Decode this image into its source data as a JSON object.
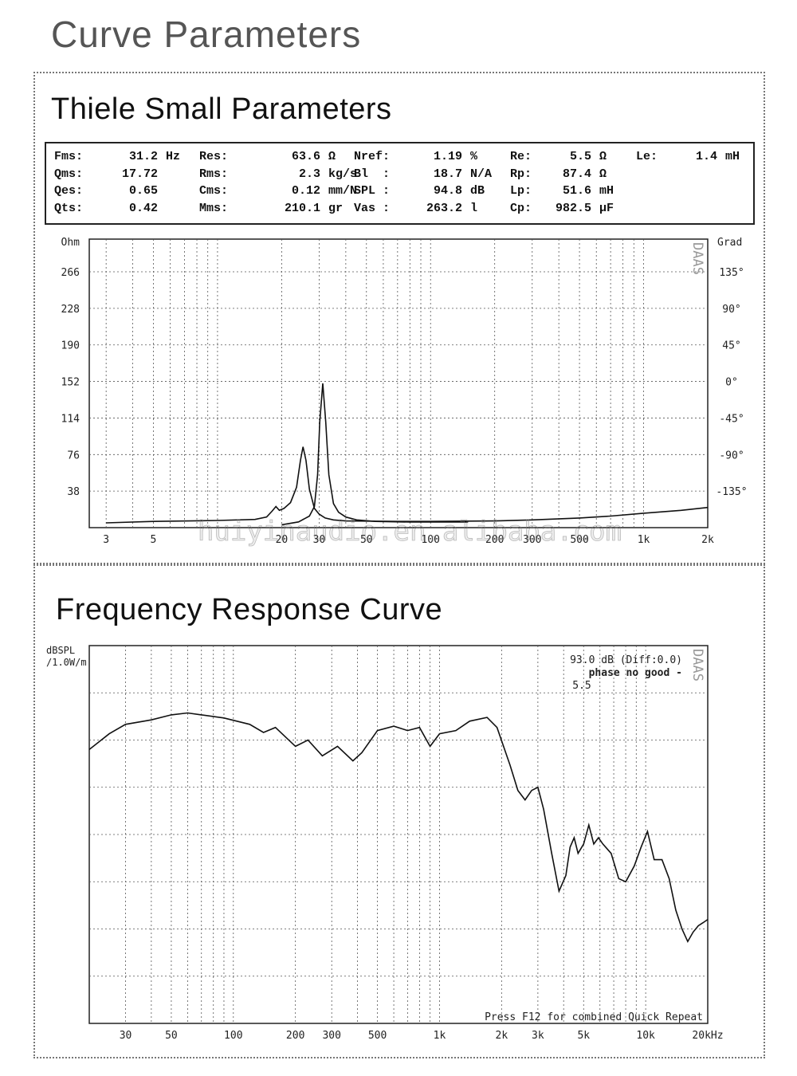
{
  "page_title": "Curve Parameters",
  "ts_section": {
    "title": "Thiele Small Parameters",
    "params": [
      [
        {
          "k": "Fms:",
          "v": "31.2",
          "u": "Hz"
        },
        {
          "k": "Qms:",
          "v": "17.72",
          "u": ""
        },
        {
          "k": "Qes:",
          "v": "0.65",
          "u": ""
        },
        {
          "k": "Qts:",
          "v": "0.42",
          "u": ""
        }
      ],
      [
        {
          "k": "Res:",
          "v": "63.6",
          "u": "Ω"
        },
        {
          "k": "Rms:",
          "v": "2.3",
          "u": "kg/s"
        },
        {
          "k": "Cms:",
          "v": "0.12",
          "u": "mm/N"
        },
        {
          "k": "Mms:",
          "v": "210.1",
          "u": "gr"
        }
      ],
      [
        {
          "k": "Nref:",
          "v": "1.19",
          "u": "%"
        },
        {
          "k": "Bl  :",
          "v": "18.7",
          "u": "N/A"
        },
        {
          "k": "SPL :",
          "v": "94.8",
          "u": "dB"
        },
        {
          "k": "Vas :",
          "v": "263.2",
          "u": "l"
        }
      ],
      [
        {
          "k": "Re:",
          "v": "5.5",
          "u": "Ω"
        },
        {
          "k": "Rp:",
          "v": "87.4",
          "u": "Ω"
        },
        {
          "k": "Lp:",
          "v": "51.6",
          "u": "mH"
        },
        {
          "k": "Cp:",
          "v": "982.5",
          "u": "μF"
        }
      ],
      [
        {
          "k": "Le:",
          "v": "1.4",
          "u": "mH"
        }
      ]
    ]
  },
  "fr_section": {
    "title": "Frequency Response Curve"
  },
  "watermark": "huiyinaudio.en.alibaba.com",
  "brand": "DAAS",
  "chart_data": [
    {
      "type": "line",
      "title": "",
      "ylabel": "Ohm",
      "y2label": "Grad",
      "xlabel": "",
      "xscale": "log",
      "xlim": [
        2.5,
        2000
      ],
      "ylim": [
        0,
        300
      ],
      "x_ticks": [
        3,
        5,
        20,
        30,
        50,
        100,
        200,
        300,
        500,
        1000,
        2000
      ],
      "x_tick_labels": [
        "3",
        "5",
        "20",
        "30",
        "50",
        "100",
        "200",
        "300",
        "500",
        "1k",
        "2k"
      ],
      "y_ticks": [
        38,
        76,
        114,
        152,
        190,
        228,
        266
      ],
      "y2_ticks": [
        -135,
        -90,
        -45,
        0,
        45,
        90,
        135
      ],
      "y2_tick_labels": [
        "-135°",
        "-90°",
        "-45°",
        "0°",
        "45°",
        "90°",
        "135°"
      ],
      "series": [
        {
          "values": [
            [
              3,
              5
            ],
            [
              5,
              6.5
            ],
            [
              10,
              7.5
            ],
            [
              15,
              8.5
            ],
            [
              17,
              11
            ],
            [
              18,
              17
            ],
            [
              18.8,
              22
            ],
            [
              19.5,
              18
            ],
            [
              20.5,
              20
            ],
            [
              22,
              26
            ],
            [
              23.5,
              42
            ],
            [
              24.5,
              70
            ],
            [
              25.2,
              84
            ],
            [
              26,
              70
            ],
            [
              27,
              40
            ],
            [
              28.5,
              20
            ],
            [
              30,
              14
            ],
            [
              32,
              10
            ],
            [
              35,
              8
            ],
            [
              40,
              7
            ],
            [
              50,
              6.8
            ],
            [
              70,
              6.5
            ],
            [
              100,
              6.5
            ],
            [
              200,
              7
            ],
            [
              300,
              8
            ],
            [
              500,
              10
            ],
            [
              700,
              12
            ],
            [
              1000,
              15
            ],
            [
              1500,
              18
            ],
            [
              2000,
              21
            ]
          ]
        },
        {
          "values": [
            [
              20,
              3
            ],
            [
              24,
              6
            ],
            [
              27,
              12
            ],
            [
              28.5,
              22
            ],
            [
              29.5,
              55
            ],
            [
              30.2,
              110
            ],
            [
              31.2,
              150
            ],
            [
              32.2,
              110
            ],
            [
              33.3,
              55
            ],
            [
              35,
              25
            ],
            [
              37,
              16
            ],
            [
              40,
              11
            ],
            [
              45,
              8
            ],
            [
              55,
              6.5
            ],
            [
              80,
              5.8
            ],
            [
              150,
              5.8
            ]
          ]
        }
      ]
    },
    {
      "type": "line",
      "title": "",
      "ylabel": "dBSPL /1.0W/m",
      "xlabel": "",
      "xscale": "log",
      "xlim": [
        20,
        20000
      ],
      "ylim": [
        45,
        105
      ],
      "x_ticks": [
        30,
        50,
        100,
        200,
        300,
        500,
        1000,
        2000,
        3000,
        5000,
        10000,
        20000
      ],
      "x_tick_labels": [
        "30",
        "50",
        "100",
        "200",
        "300",
        "500",
        "1k",
        "2k",
        "3k",
        "5k",
        "10k",
        "20kHz"
      ],
      "annotations": [
        "93.0 dB (Diff:0.0)",
        "phase no good -",
        "5.5",
        "Press F12 for combined Quick Repeat"
      ],
      "series": [
        {
          "values": [
            [
              20,
              88.5
            ],
            [
              25,
              91
            ],
            [
              30,
              92.5
            ],
            [
              40,
              93.2
            ],
            [
              50,
              94
            ],
            [
              60,
              94.3
            ],
            [
              70,
              94
            ],
            [
              90,
              93.5
            ],
            [
              120,
              92.5
            ],
            [
              140,
              91.2
            ],
            [
              160,
              92
            ],
            [
              200,
              89
            ],
            [
              230,
              90
            ],
            [
              270,
              87.5
            ],
            [
              320,
              89
            ],
            [
              380,
              86.7
            ],
            [
              420,
              88
            ],
            [
              500,
              91.5
            ],
            [
              600,
              92.2
            ],
            [
              700,
              91.5
            ],
            [
              800,
              92
            ],
            [
              900,
              89
            ],
            [
              1000,
              91
            ],
            [
              1200,
              91.5
            ],
            [
              1400,
              93
            ],
            [
              1700,
              93.6
            ],
            [
              1900,
              92
            ],
            [
              2200,
              86
            ],
            [
              2400,
              82
            ],
            [
              2600,
              80.5
            ],
            [
              2800,
              82
            ],
            [
              3000,
              82.5
            ],
            [
              3200,
              79
            ],
            [
              3500,
              72
            ],
            [
              3800,
              66
            ],
            [
              4100,
              68.5
            ],
            [
              4300,
              73
            ],
            [
              4500,
              74.5
            ],
            [
              4700,
              72
            ],
            [
              5000,
              73.5
            ],
            [
              5300,
              76.5
            ],
            [
              5600,
              73.5
            ],
            [
              5900,
              74.5
            ],
            [
              6200,
              73.5
            ],
            [
              6800,
              72
            ],
            [
              7400,
              68
            ],
            [
              8000,
              67.5
            ],
            [
              8800,
              70
            ],
            [
              9500,
              73
            ],
            [
              10200,
              75.5
            ],
            [
              11000,
              71
            ],
            [
              12000,
              71
            ],
            [
              13000,
              68
            ],
            [
              14000,
              63
            ],
            [
              15000,
              60
            ],
            [
              16000,
              58
            ],
            [
              17000,
              59.5
            ],
            [
              18000,
              60.5
            ],
            [
              19000,
              61
            ],
            [
              20000,
              61.5
            ]
          ]
        }
      ]
    }
  ]
}
